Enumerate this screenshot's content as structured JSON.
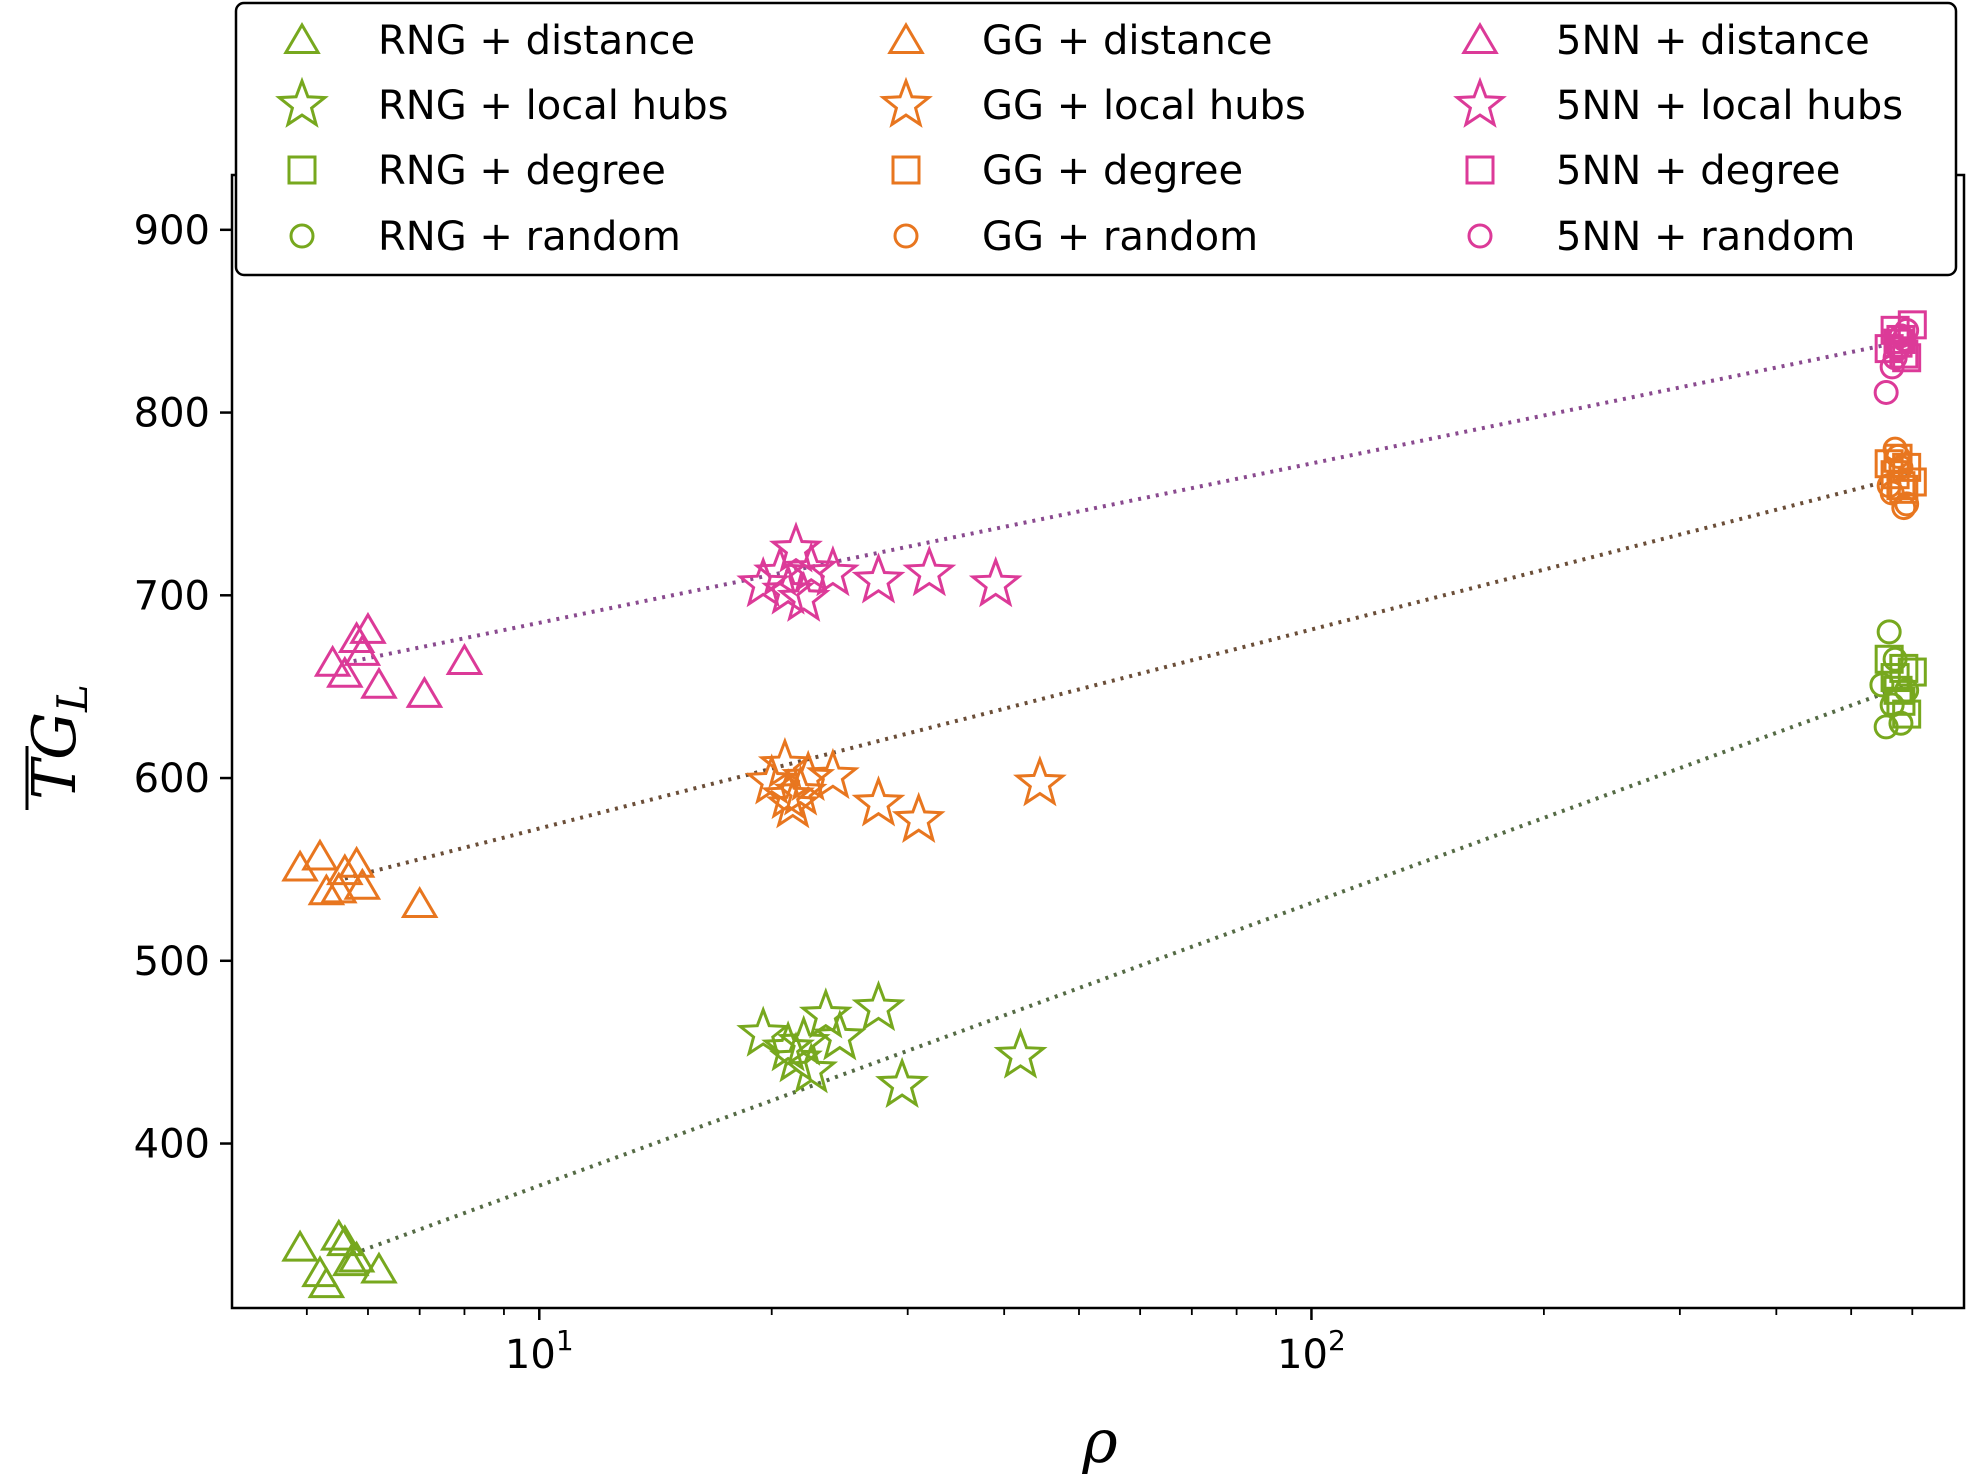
{
  "chart_data": {
    "type": "scatter",
    "xscale": "log",
    "xlim": [
      4.0,
      700
    ],
    "ylim": [
      310,
      930
    ],
    "xlabel": "ρ",
    "ylabel_main": "TG",
    "ylabel_sub": "L",
    "yticks": [
      400,
      500,
      600,
      700,
      800,
      900
    ],
    "xticks": [
      {
        "value": 10,
        "base": "10",
        "exp": "1"
      },
      {
        "value": 100,
        "base": "10",
        "exp": "2"
      }
    ],
    "grid": false,
    "legend_position": "top",
    "colors": {
      "RNG": "#77a81e",
      "GG": "#e8761f",
      "5NN": "#dc3a98"
    },
    "fit_lines": [
      {
        "group": "RNG",
        "color": "#556b45",
        "x": [
          5.6,
          600
        ],
        "y": [
          338,
          652
        ]
      },
      {
        "group": "GG",
        "color": "#6b4e38",
        "x": [
          5.6,
          600
        ],
        "y": [
          545,
          766
        ]
      },
      {
        "group": "5NN",
        "color": "#8a4a8f",
        "x": [
          5.6,
          600
        ],
        "y": [
          663,
          840
        ]
      }
    ],
    "series": [
      {
        "name": "RNG + distance",
        "group": "RNG",
        "marker": "triangle",
        "x": [
          4.9,
          5.2,
          5.5,
          5.6,
          5.7,
          6.2,
          5.8,
          5.3
        ],
        "y": [
          342,
          328,
          348,
          345,
          334,
          330,
          336,
          322
        ]
      },
      {
        "name": "RNG + local hubs",
        "group": "RNG",
        "marker": "star",
        "x": [
          19.5,
          21.0,
          21.5,
          22.5,
          23.5,
          24.5,
          27.5,
          29.5,
          42.0,
          22.0
        ],
        "y": [
          460,
          452,
          446,
          440,
          470,
          458,
          474,
          432,
          448,
          455
        ]
      },
      {
        "name": "RNG + degree",
        "group": "RNG",
        "marker": "square",
        "x": [
          560,
          570,
          580,
          590,
          600,
          575,
          585
        ],
        "y": [
          665,
          655,
          642,
          635,
          658,
          648,
          660
        ]
      },
      {
        "name": "RNG + random",
        "group": "RNG",
        "marker": "circle",
        "x": [
          548,
          560,
          570,
          580,
          590,
          565,
          555
        ],
        "y": [
          651,
          680,
          665,
          630,
          648,
          640,
          628
        ]
      },
      {
        "name": "GG + distance",
        "group": "GG",
        "marker": "triangle",
        "x": [
          4.9,
          5.2,
          5.5,
          5.6,
          5.8,
          5.9,
          7.0,
          5.3
        ],
        "y": [
          550,
          556,
          538,
          548,
          552,
          540,
          530,
          537
        ]
      },
      {
        "name": "GG + local hubs",
        "group": "GG",
        "marker": "star",
        "x": [
          20.0,
          20.8,
          21.3,
          21.8,
          22.3,
          24.0,
          27.5,
          31.0,
          44.5,
          21.0
        ],
        "y": [
          598,
          607,
          585,
          592,
          600,
          601,
          586,
          577,
          597,
          590
        ]
      },
      {
        "name": "GG + degree",
        "group": "GG",
        "marker": "square",
        "x": [
          560,
          570,
          580,
          590,
          600,
          575,
          585
        ],
        "y": [
          772,
          766,
          760,
          770,
          762,
          775,
          758
        ]
      },
      {
        "name": "GG + random",
        "group": "GG",
        "marker": "circle",
        "x": [
          560,
          570,
          580,
          590,
          575,
          585,
          565
        ],
        "y": [
          760,
          780,
          770,
          750,
          776,
          748,
          756
        ]
      },
      {
        "name": "5NN + distance",
        "group": "5NN",
        "marker": "triangle",
        "x": [
          5.4,
          5.6,
          5.8,
          6.0,
          6.2,
          7.1,
          8.0,
          5.9
        ],
        "y": [
          662,
          656,
          675,
          680,
          650,
          645,
          663,
          668
        ]
      },
      {
        "name": "5NN + local hubs",
        "group": "5NN",
        "marker": "star",
        "x": [
          19.5,
          20.5,
          21.5,
          22.0,
          22.5,
          24.0,
          27.5,
          32.0,
          39.0,
          21.0
        ],
        "y": [
          706,
          712,
          725,
          698,
          714,
          712,
          708,
          712,
          706,
          702
        ]
      },
      {
        "name": "5NN + degree",
        "group": "5NN",
        "marker": "square",
        "x": [
          560,
          570,
          580,
          590,
          600,
          575,
          585
        ],
        "y": [
          835,
          845,
          840,
          830,
          848,
          838,
          832
        ]
      },
      {
        "name": "5NN + random",
        "group": "5NN",
        "marker": "circle",
        "x": [
          555,
          565,
          575,
          585,
          590,
          570,
          580
        ],
        "y": [
          811,
          825,
          835,
          840,
          845,
          830,
          842
        ]
      }
    ]
  }
}
